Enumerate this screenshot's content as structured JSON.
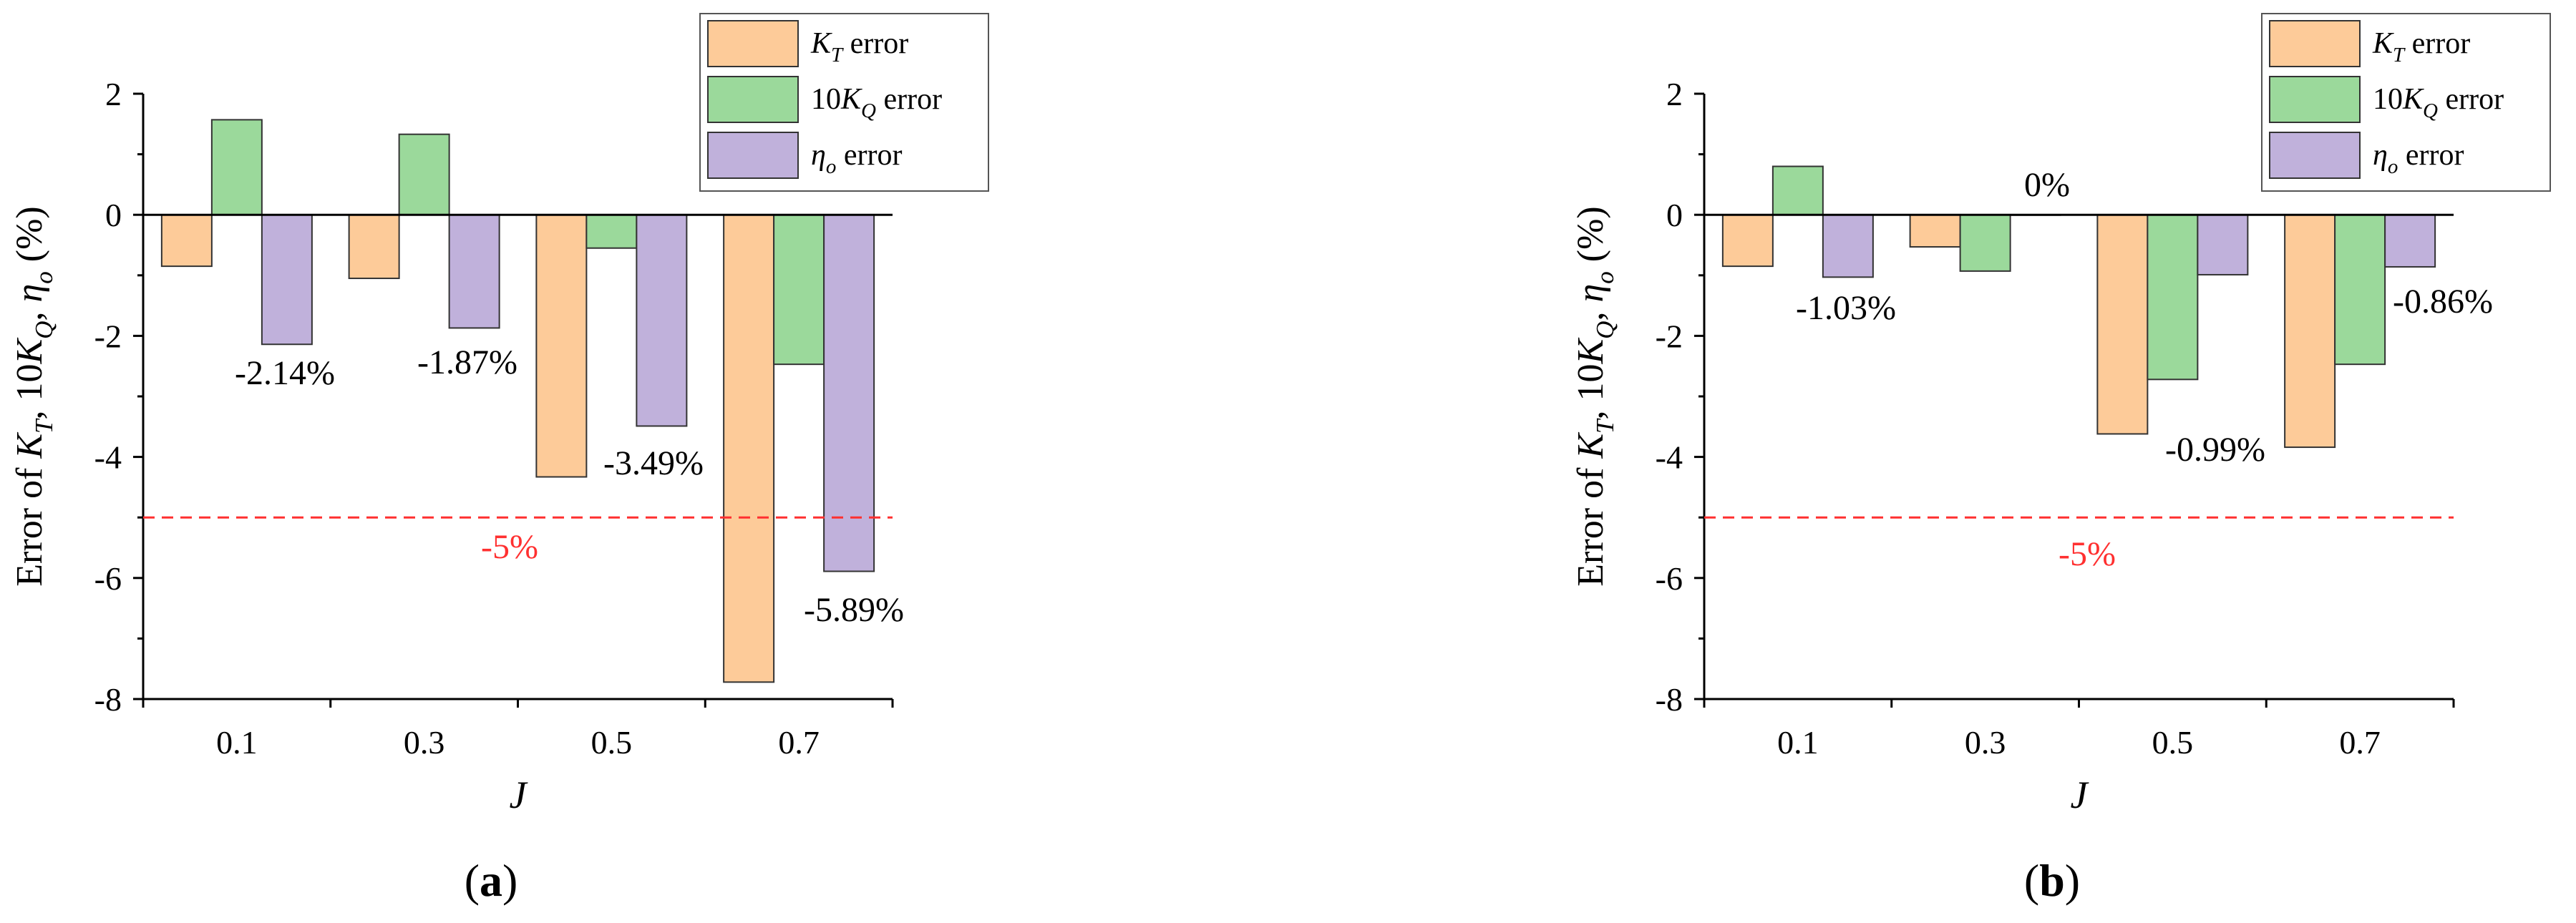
{
  "chart_data": [
    {
      "type": "bar",
      "panel_label": "a",
      "xlabel": "J",
      "ylabel": "Error of K_T, 10K_Q, η_o (%)",
      "categories": [
        "0.1",
        "0.3",
        "0.5",
        "0.7"
      ],
      "ylim": [
        -8,
        2
      ],
      "yticks": [
        2,
        0,
        -2,
        -4,
        -6,
        -8
      ],
      "grid": false,
      "legend_position": "top-right",
      "series": [
        {
          "name": "K_T error",
          "color": "#FDCB99",
          "values": [
            -0.85,
            -1.05,
            -4.33,
            -7.72
          ]
        },
        {
          "name": "10K_Q error",
          "color": "#9BD99B",
          "values": [
            1.57,
            1.33,
            -0.55,
            -2.47
          ]
        },
        {
          "name": "η_o error",
          "color": "#C0B1DB",
          "values": [
            -2.14,
            -1.87,
            -3.49,
            -5.89
          ]
        }
      ],
      "reference_line": {
        "value": -5,
        "label": "-5%",
        "color": "#FF3030"
      },
      "annotations": [
        "-2.14%",
        "-1.87%",
        "-3.49%",
        "-5.89%"
      ]
    },
    {
      "type": "bar",
      "panel_label": "b",
      "xlabel": "J",
      "ylabel": "Error of K_T, 10K_Q, η_o (%)",
      "categories": [
        "0.1",
        "0.3",
        "0.5",
        "0.7"
      ],
      "ylim": [
        -8,
        2
      ],
      "yticks": [
        2,
        0,
        -2,
        -4,
        -6,
        -8
      ],
      "grid": false,
      "legend_position": "top-right",
      "series": [
        {
          "name": "K_T error",
          "color": "#FDCB99",
          "values": [
            -0.85,
            -0.53,
            -3.62,
            -3.84
          ]
        },
        {
          "name": "10K_Q error",
          "color": "#9BD99B",
          "values": [
            0.8,
            -0.93,
            -2.72,
            -2.47
          ]
        },
        {
          "name": "η_o error",
          "color": "#C0B1DB",
          "values": [
            -1.03,
            0,
            -0.99,
            -0.86
          ]
        }
      ],
      "reference_line": {
        "value": -5,
        "label": "-5%",
        "color": "#FF3030"
      },
      "annotations": [
        "-1.03%",
        "0%",
        "-0.99%",
        "-0.86%"
      ]
    }
  ]
}
